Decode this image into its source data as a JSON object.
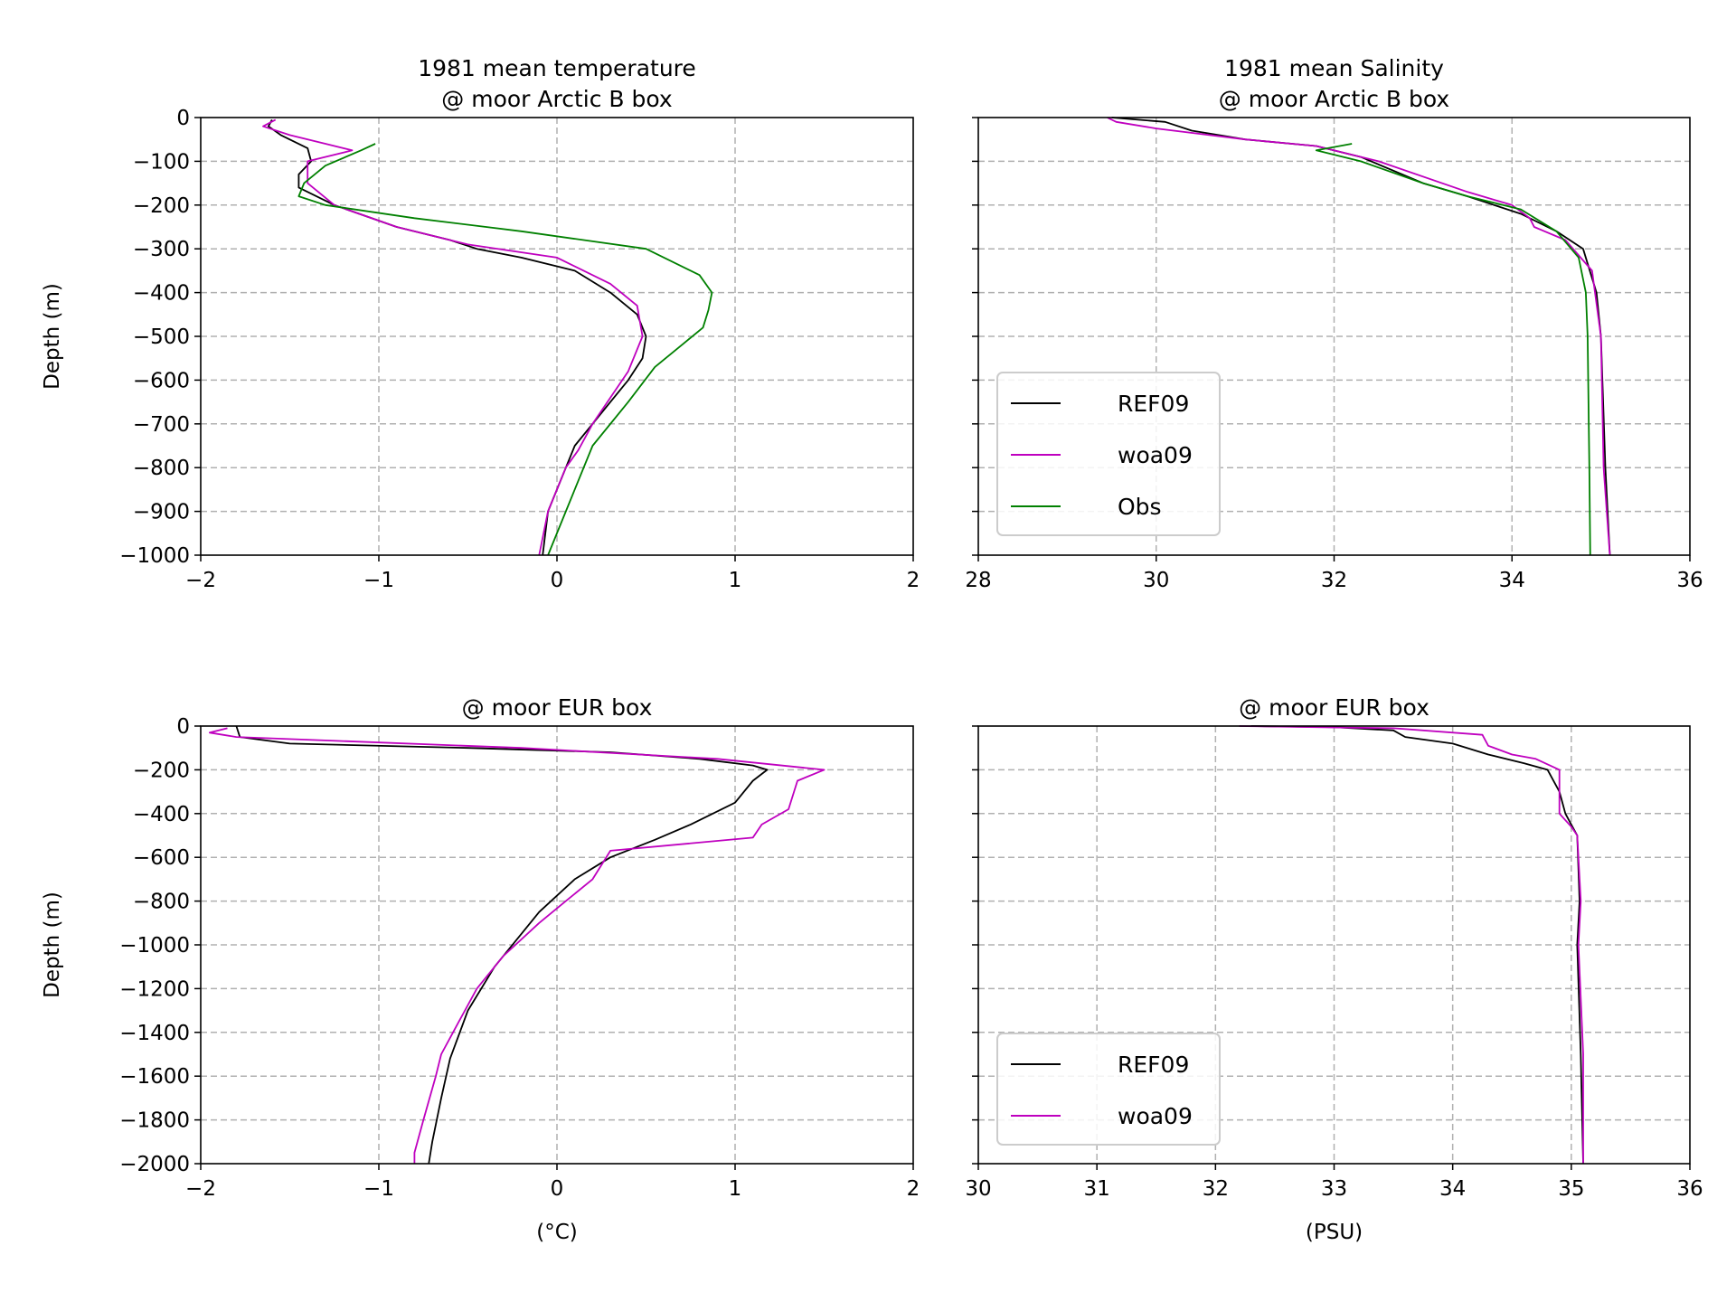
{
  "chart_data": [
    {
      "type": "line",
      "title": "1981 mean temperature\n@ moor Arctic B box",
      "xlabel": "",
      "ylabel": "Depth (m)",
      "xlim": [
        -2,
        2
      ],
      "ylim": [
        -1000,
        0
      ],
      "xticks": [
        -2,
        -1,
        0,
        1,
        2
      ],
      "xtick_labels": [
        "−2",
        "−1",
        "0",
        "1",
        "2"
      ],
      "yticks": [
        0,
        -100,
        -200,
        -300,
        -400,
        -500,
        -600,
        -700,
        -800,
        -900,
        -1000
      ],
      "ytick_labels": [
        "0",
        "−100",
        "−200",
        "−300",
        "−400",
        "−500",
        "−600",
        "−700",
        "−800",
        "−900",
        "−1000"
      ],
      "grid": true,
      "series": [
        {
          "name": "REF09",
          "color": "#000000",
          "x": [
            -1.6,
            -1.62,
            -1.55,
            -1.4,
            -1.38,
            -1.45,
            -1.45,
            -1.25,
            -0.9,
            -0.6,
            -0.45,
            -0.2,
            0.1,
            0.3,
            0.45,
            0.5,
            0.48,
            0.4,
            0.3,
            0.2,
            0.1,
            -0.05,
            -0.08
          ],
          "y": [
            -5,
            -20,
            -40,
            -70,
            -100,
            -130,
            -160,
            -200,
            -250,
            -280,
            -300,
            -320,
            -350,
            -400,
            -450,
            -500,
            -550,
            -600,
            -650,
            -700,
            -750,
            -900,
            -1000
          ]
        },
        {
          "name": "woa09",
          "color": "#bf00bf",
          "x": [
            -1.58,
            -1.65,
            -1.5,
            -1.3,
            -1.15,
            -1.4,
            -1.4,
            -1.25,
            -0.9,
            -0.5,
            0.0,
            0.3,
            0.45,
            0.48,
            0.4,
            0.3,
            0.2,
            0.12,
            0.05,
            -0.05,
            -0.1
          ],
          "y": [
            -5,
            -20,
            -40,
            -60,
            -75,
            -100,
            -150,
            -200,
            -250,
            -290,
            -320,
            -380,
            -430,
            -500,
            -580,
            -640,
            -700,
            -760,
            -800,
            -900,
            -1000
          ]
        },
        {
          "name": "Obs",
          "color": "#008000",
          "x": [
            -1.02,
            -1.1,
            -1.3,
            -1.42,
            -1.45,
            -1.3,
            -0.8,
            -0.2,
            0.5,
            0.8,
            0.87,
            0.85,
            0.82,
            0.7,
            0.55,
            0.4,
            0.2,
            0.05,
            -0.05
          ],
          "y": [
            -60,
            -75,
            -110,
            -150,
            -180,
            -200,
            -230,
            -260,
            -300,
            -360,
            -400,
            -440,
            -480,
            -520,
            -570,
            -650,
            -750,
            -900,
            -1000
          ]
        }
      ]
    },
    {
      "type": "line",
      "title": "1981 mean Salinity\n@ moor Arctic B box",
      "xlabel": "",
      "ylabel": "",
      "xlim": [
        28,
        36
      ],
      "ylim": [
        -1000,
        0
      ],
      "xticks": [
        28,
        30,
        32,
        34,
        36
      ],
      "xtick_labels": [
        "28",
        "30",
        "32",
        "34",
        "36"
      ],
      "yticks": [
        0,
        -100,
        -200,
        -300,
        -400,
        -500,
        -600,
        -700,
        -800,
        -900,
        -1000
      ],
      "grid": true,
      "legend": {
        "position": "lower-left",
        "entries": [
          "REF09",
          "woa09",
          "Obs"
        ]
      },
      "series": [
        {
          "name": "REF09",
          "color": "#000000",
          "x": [
            29.5,
            30.1,
            30.4,
            31.0,
            31.8,
            32.3,
            33.0,
            33.5,
            34.1,
            34.5,
            34.8,
            34.95,
            35.0,
            35.05,
            35.1
          ],
          "y": [
            0,
            -10,
            -30,
            -50,
            -65,
            -90,
            -150,
            -180,
            -220,
            -260,
            -300,
            -400,
            -500,
            -800,
            -1000
          ]
        },
        {
          "name": "woa09",
          "color": "#bf00bf",
          "x": [
            29.45,
            29.55,
            30.0,
            31.0,
            31.8,
            32.5,
            33.5,
            34.0,
            34.2,
            34.25,
            34.6,
            34.9,
            35.0,
            35.03,
            35.1
          ],
          "y": [
            0,
            -10,
            -25,
            -50,
            -65,
            -100,
            -170,
            -200,
            -230,
            -250,
            -280,
            -350,
            -500,
            -800,
            -1000
          ]
        },
        {
          "name": "Obs",
          "color": "#008000",
          "x": [
            32.2,
            31.8,
            32.3,
            33.0,
            33.5,
            34.1,
            34.5,
            34.75,
            34.83,
            34.85,
            34.87,
            34.88
          ],
          "y": [
            -60,
            -75,
            -100,
            -150,
            -180,
            -210,
            -260,
            -320,
            -400,
            -500,
            -800,
            -1000
          ]
        }
      ]
    },
    {
      "type": "line",
      "title": "@ moor EUR box",
      "xlabel": "(°C)",
      "ylabel": "Depth (m)",
      "xlim": [
        -2,
        2
      ],
      "ylim": [
        -2000,
        0
      ],
      "xticks": [
        -2,
        -1,
        0,
        1,
        2
      ],
      "xtick_labels": [
        "−2",
        "−1",
        "0",
        "1",
        "2"
      ],
      "yticks": [
        0,
        -200,
        -400,
        -600,
        -800,
        -1000,
        -1200,
        -1400,
        -1600,
        -1800,
        -2000
      ],
      "ytick_labels": [
        "0",
        "−200",
        "−400",
        "−600",
        "−800",
        "−1000",
        "−1200",
        "−1400",
        "−1600",
        "−1800",
        "−2000"
      ],
      "grid": true,
      "series": [
        {
          "name": "REF09",
          "color": "#000000",
          "x": [
            -1.8,
            -1.78,
            -1.5,
            -0.5,
            0.3,
            0.8,
            1.1,
            1.18,
            1.1,
            1.0,
            0.75,
            0.55,
            0.3,
            0.1,
            -0.1,
            -0.2,
            -0.35,
            -0.5,
            -0.6,
            -0.65,
            -0.7,
            -0.72
          ],
          "y": [
            0,
            -50,
            -80,
            -100,
            -120,
            -150,
            -180,
            -200,
            -250,
            -350,
            -450,
            -520,
            -600,
            -700,
            -850,
            -950,
            -1100,
            -1300,
            -1520,
            -1700,
            -1900,
            -2000
          ]
        },
        {
          "name": "woa09",
          "color": "#bf00bf",
          "x": [
            -1.85,
            -1.95,
            -1.8,
            -0.2,
            0.9,
            1.5,
            1.35,
            1.3,
            1.15,
            1.1,
            0.3,
            0.2,
            0.05,
            -0.1,
            -0.3,
            -0.45,
            -0.55,
            -0.65,
            -0.68,
            -0.75,
            -0.8,
            -0.8
          ],
          "y": [
            -10,
            -30,
            -50,
            -100,
            -150,
            -200,
            -250,
            -380,
            -450,
            -510,
            -570,
            -700,
            -800,
            -900,
            -1050,
            -1200,
            -1350,
            -1500,
            -1600,
            -1800,
            -1950,
            -2000
          ]
        }
      ]
    },
    {
      "type": "line",
      "title": "@ moor EUR box",
      "xlabel": "(PSU)",
      "ylabel": "",
      "xlim": [
        30,
        36
      ],
      "ylim": [
        -2000,
        0
      ],
      "xticks": [
        30,
        31,
        32,
        33,
        34,
        35,
        36
      ],
      "xtick_labels": [
        "30",
        "31",
        "32",
        "33",
        "34",
        "35",
        "36"
      ],
      "yticks": [
        0,
        -200,
        -400,
        -600,
        -800,
        -1000,
        -1200,
        -1400,
        -1600,
        -1800,
        -2000
      ],
      "grid": true,
      "legend": {
        "position": "lower-left",
        "entries": [
          "REF09",
          "woa09"
        ]
      },
      "series": [
        {
          "name": "REF09",
          "color": "#000000",
          "x": [
            32.3,
            33.0,
            33.5,
            33.6,
            34.0,
            34.3,
            34.6,
            34.8,
            34.9,
            34.95,
            35.0,
            35.05,
            35.07,
            35.05,
            35.08,
            35.1
          ],
          "y": [
            0,
            -5,
            -20,
            -50,
            -80,
            -130,
            -170,
            -200,
            -300,
            -400,
            -450,
            -500,
            -800,
            -1000,
            -1500,
            -2000
          ]
        },
        {
          "name": "woa09",
          "color": "#bf00bf",
          "x": [
            32.2,
            33.5,
            34.25,
            34.3,
            34.4,
            34.5,
            34.7,
            34.9,
            34.9,
            34.9,
            35.0,
            35.05,
            35.08,
            35.06,
            35.1,
            35.1
          ],
          "y": [
            0,
            -10,
            -40,
            -90,
            -110,
            -130,
            -150,
            -200,
            -300,
            -400,
            -460,
            -500,
            -800,
            -1000,
            -1500,
            -2000
          ]
        }
      ]
    }
  ]
}
